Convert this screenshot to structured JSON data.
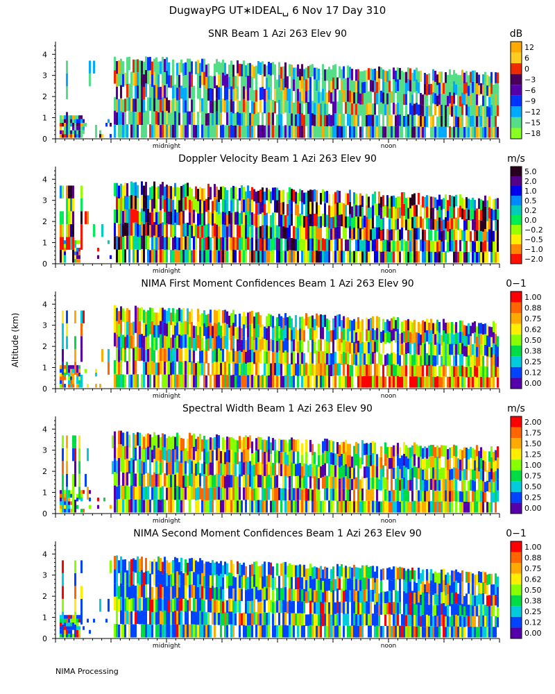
{
  "figure": {
    "title": "DugwayPG UT∗IDEAL␣   6 Nov 17 Day 310",
    "ylabel": "Altitude (km)",
    "footer": "NIMA Processing"
  },
  "chart_data": [
    {
      "type": "heatmap",
      "title": "SNR Beam 1 Azi 263 Elev 90",
      "unit": "dB",
      "yticks": [
        "0",
        "1",
        "2",
        "3",
        "4"
      ],
      "ylim": [
        0,
        4.6
      ],
      "xticks_labeled": [
        {
          "pos": 0.25,
          "label": "midnight"
        },
        {
          "pos": 0.75,
          "label": "noon"
        }
      ],
      "colorbar": {
        "labels": [
          "12",
          "6",
          "0",
          "−3",
          "−6",
          "−9",
          "−12",
          "−15",
          "−18"
        ],
        "colors": [
          "#ffaa00",
          "#ffcc22",
          "#ee2a00",
          "#4a005a",
          "#5500aa",
          "#0033ff",
          "#00aaff",
          "#55dd88",
          "#88ff22"
        ]
      },
      "dominant": "low"
    },
    {
      "type": "heatmap",
      "title": "Doppler Velocity Beam 1 Azi 263 Elev 90",
      "unit": "m/s",
      "yticks": [
        "0",
        "1",
        "2",
        "3",
        "4"
      ],
      "ylim": [
        0,
        4.6
      ],
      "xticks_labeled": [
        {
          "pos": 0.25,
          "label": "midnight"
        },
        {
          "pos": 0.75,
          "label": "noon"
        }
      ],
      "colorbar": {
        "labels": [
          "5.0",
          "2.0",
          "1.0",
          "0.5",
          "0.2",
          "0.0",
          "−0.2",
          "−0.5",
          "−1.0",
          "−2.0"
        ],
        "colors": [
          "#2a0020",
          "#550088",
          "#0000ee",
          "#0088ff",
          "#00ccbb",
          "#00ee55",
          "#99ff00",
          "#ffee00",
          "#ff8800",
          "#ff1100"
        ]
      },
      "dominant": "mixed"
    },
    {
      "type": "heatmap",
      "title": "NIMA First Moment Confidences Beam 1 Azi 263 Elev 90",
      "unit": "0−1",
      "yticks": [
        "0",
        "1",
        "2",
        "3",
        "4"
      ],
      "ylim": [
        0,
        4.6
      ],
      "xticks_labeled": [
        {
          "pos": 0.25,
          "label": "midnight"
        },
        {
          "pos": 0.75,
          "label": "noon"
        }
      ],
      "colorbar": {
        "labels": [
          "1.00",
          "0.88",
          "0.75",
          "0.62",
          "0.50",
          "0.38",
          "0.25",
          "0.12",
          "0.00"
        ],
        "colors": [
          "#ff0000",
          "#ff6600",
          "#ffaa00",
          "#ffee00",
          "#88ff00",
          "#00dd44",
          "#00ccdd",
          "#0044ff",
          "#5500aa"
        ]
      },
      "dominant": "mid"
    },
    {
      "type": "heatmap",
      "title": "Spectral Width Beam 1 Azi 263 Elev 90",
      "unit": "m/s",
      "yticks": [
        "0",
        "1",
        "2",
        "3",
        "4"
      ],
      "ylim": [
        0,
        4.6
      ],
      "xticks_labeled": [
        {
          "pos": 0.25,
          "label": "midnight"
        },
        {
          "pos": 0.75,
          "label": "noon"
        }
      ],
      "colorbar": {
        "labels": [
          "2.00",
          "1.75",
          "1.50",
          "1.25",
          "1.00",
          "0.75",
          "0.50",
          "0.25",
          "0.00"
        ],
        "colors": [
          "#ff0000",
          "#ff6600",
          "#ffaa00",
          "#ffee00",
          "#88ff00",
          "#00dd44",
          "#00ccdd",
          "#0044ff",
          "#5500aa"
        ]
      },
      "dominant": "mid"
    },
    {
      "type": "heatmap",
      "title": "NIMA Second Moment Confidences Beam 1 Azi 263 Elev 90",
      "unit": "0−1",
      "yticks": [
        "0",
        "1",
        "2",
        "3",
        "4"
      ],
      "ylim": [
        0,
        4.6
      ],
      "xticks_labeled": [
        {
          "pos": 0.25,
          "label": "midnight"
        },
        {
          "pos": 0.75,
          "label": "noon"
        }
      ],
      "colorbar": {
        "labels": [
          "1.00",
          "0.88",
          "0.75",
          "0.62",
          "0.50",
          "0.38",
          "0.25",
          "0.12",
          "0.00"
        ],
        "colors": [
          "#ff0000",
          "#ff6600",
          "#ffaa00",
          "#ffee00",
          "#88ff00",
          "#00dd44",
          "#00ccdd",
          "#0044ff",
          "#5500aa"
        ]
      },
      "dominant": "low"
    }
  ]
}
